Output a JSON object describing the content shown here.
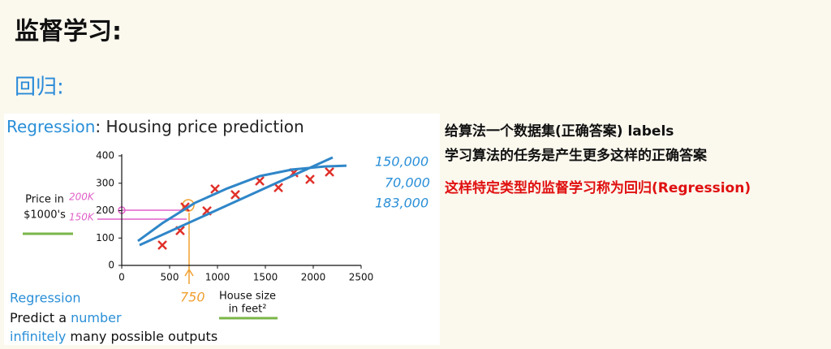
{
  "notes": {
    "title": "监督学习:",
    "subtitle": "回归:",
    "lines": [
      "给算法一个数据集(正确答案) labels",
      "学习算法的任务是产生更多这样的正确答案",
      "这样特定类型的监督学习称为回归(Regression)"
    ],
    "prices": [
      "150,000",
      "70,000",
      "183,000"
    ]
  },
  "chart_data": {
    "type": "scatter",
    "title": {
      "highlight": "Regression",
      "rest": ": Housing price prediction"
    },
    "y_label": [
      "Price in",
      "$1000's"
    ],
    "x_label": [
      "House size",
      "in feet²"
    ],
    "annotations": [
      "200K",
      "150K",
      "750"
    ],
    "footer": {
      "heading": "Regression",
      "line1": [
        "Predict a ",
        "number"
      ],
      "line2": [
        "infinitely",
        " many possible outputs"
      ]
    },
    "xlim": [
      0,
      2500
    ],
    "ylim": [
      0,
      400
    ],
    "xticks": [
      0,
      500,
      1000,
      1500,
      2000,
      2500
    ],
    "yticks": [
      0,
      100,
      200,
      300,
      400
    ],
    "series": [
      {
        "color": "#e0312a",
        "marker": "x",
        "x": [
          424,
          610,
          661,
          890,
          975,
          1186,
          1441,
          1636,
          1797,
          1966,
          2170
        ],
        "values": [
          74,
          127,
          213,
          199,
          279,
          258,
          308,
          284,
          338,
          314,
          341
        ]
      },
      {
        "color": "#2f86c8",
        "marker": "line",
        "x": [
          186,
          2203
        ],
        "values": [
          74,
          394
        ]
      },
      {
        "color": "#2f86c8",
        "marker": "line",
        "x": [
          169,
          424,
          763,
          1102,
          1441,
          1780,
          2119,
          2347
        ],
        "values": [
          89,
          154,
          228,
          281,
          326,
          350,
          361,
          364
        ]
      }
    ]
  }
}
